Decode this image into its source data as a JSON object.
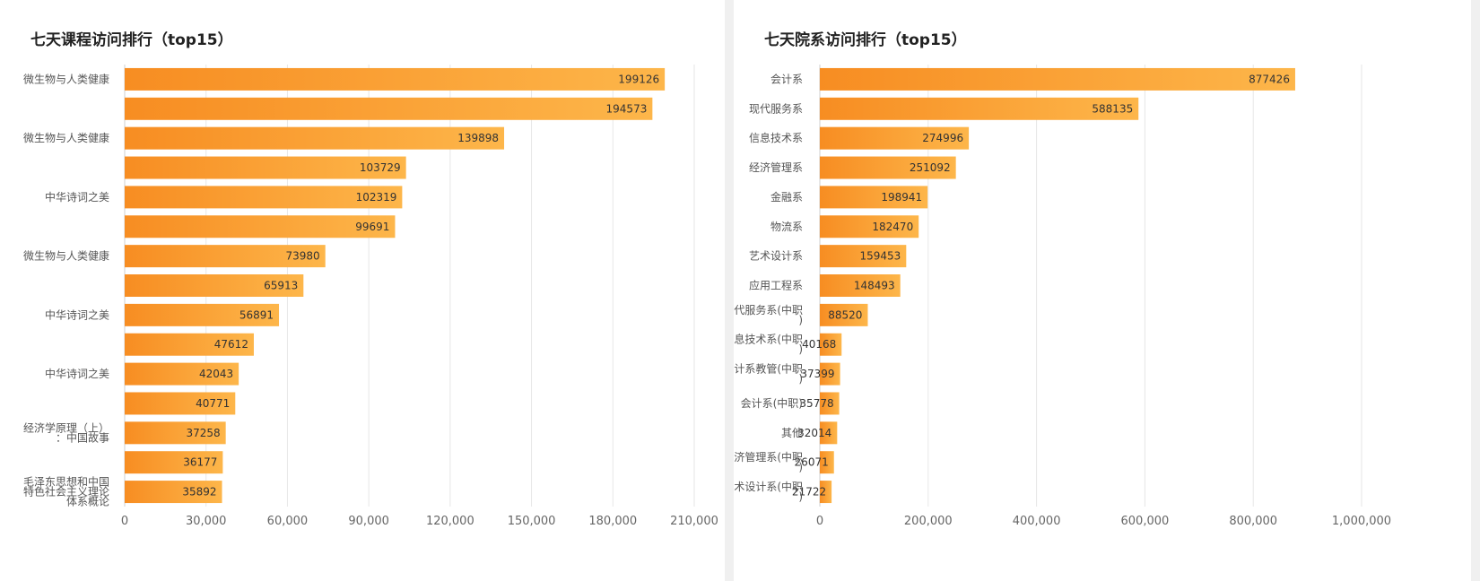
{
  "colors": {
    "bar_start": "#f78d22",
    "bar_end": "#fdb64a",
    "grid": "#e6e6e6",
    "axis": "#cfcfcf"
  },
  "chart_data": [
    {
      "type": "bar",
      "orientation": "horizontal",
      "title": "七天课程访问排行（top15）",
      "categories": [
        [
          "微生物与人类健康"
        ],
        [],
        [
          "微生物与人类健康"
        ],
        [],
        [
          "中华诗词之美"
        ],
        [],
        [
          "微生物与人类健康"
        ],
        [],
        [
          "中华诗词之美"
        ],
        [],
        [
          "中华诗词之美"
        ],
        [],
        [
          "经济学原理（上）",
          "：中国故事"
        ],
        [],
        [
          "毛泽东思想和中国",
          "特色社会主义理论",
          "体系概论"
        ]
      ],
      "values": [
        199126,
        194573,
        139898,
        103729,
        102319,
        99691,
        73980,
        65913,
        56891,
        47612,
        42043,
        40771,
        37258,
        36177,
        35892
      ],
      "xticks": [
        "0",
        "30,000",
        "60,000",
        "90,000",
        "120,000",
        "150,000",
        "180,000",
        "210,000"
      ],
      "xlim": [
        0,
        210000
      ],
      "grid": true
    },
    {
      "type": "bar",
      "orientation": "horizontal",
      "title": "七天院系访问排行（top15）",
      "categories": [
        [
          "会计系"
        ],
        [
          "现代服务系"
        ],
        [
          "信息技术系"
        ],
        [
          "经济管理系"
        ],
        [
          "金融系"
        ],
        [
          "物流系"
        ],
        [
          "艺术设计系"
        ],
        [
          "应用工程系"
        ],
        [
          "现代服务系(中职",
          ")"
        ],
        [
          "信息技术系(中职",
          ")"
        ],
        [
          "会计系教管(中职",
          ")"
        ],
        [
          "会计系(中职)"
        ],
        [
          "其他"
        ],
        [
          "经济管理系(中职",
          ")"
        ],
        [
          "艺术设计系(中职",
          ")"
        ]
      ],
      "values": [
        877426,
        588135,
        274996,
        251092,
        198941,
        182470,
        159453,
        148493,
        88520,
        40168,
        37399,
        35778,
        32014,
        26071,
        21722
      ],
      "xticks": [
        "0",
        "200,000",
        "400,000",
        "600,000",
        "800,000",
        "1,000,000"
      ],
      "xlim": [
        0,
        1000000
      ],
      "grid": true
    }
  ]
}
